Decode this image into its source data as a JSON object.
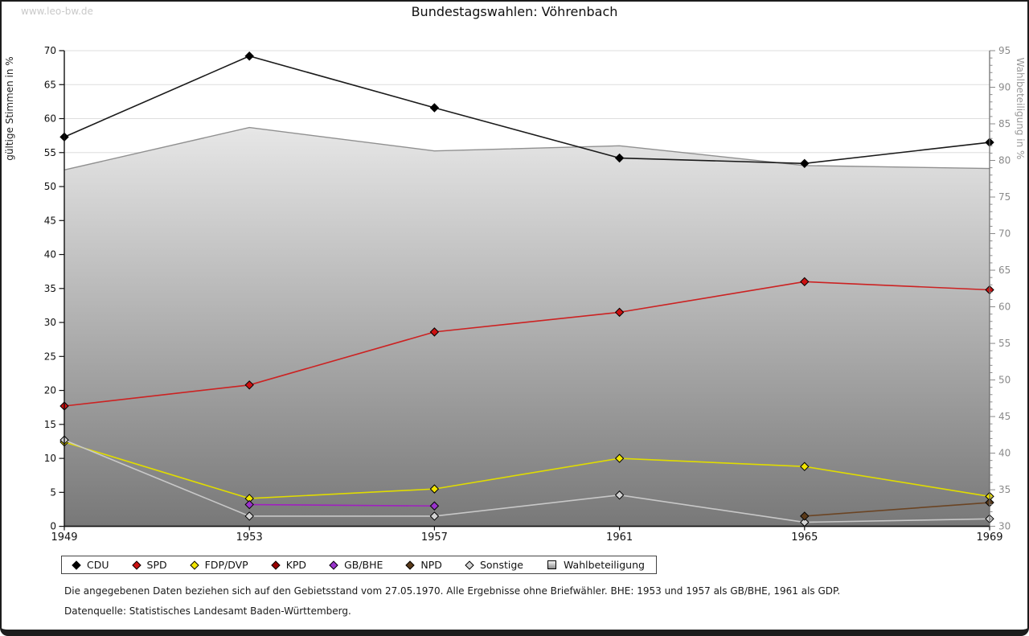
{
  "page": {
    "watermark": "www.leo-bw.de",
    "title": "Bundestagswahlen: Vöhrenbach",
    "footnote1": "Die angegebenen Daten beziehen sich auf den Gebietsstand vom 27.05.1970. Alle Ergebnisse ohne Briefwähler. BHE: 1953 und 1957 als GB/BHE, 1961 als GDP.",
    "footnote2": "Datenquelle: Statistisches Landesamt Baden-Württemberg."
  },
  "chart_data": {
    "type": "line",
    "title": "Bundestagswahlen: Vöhrenbach",
    "x_labels": [
      "1949",
      "1953",
      "1957",
      "1961",
      "1965",
      "1969"
    ],
    "y_left": {
      "label": "gültige Stimmen in %",
      "min": 0,
      "max": 70,
      "step": 5
    },
    "y_right": {
      "label": "Wahlbeteiligung in %",
      "min": 30,
      "max": 95,
      "step": 5
    },
    "grid": "horizontal-left-ticks",
    "legend_position": "bottom",
    "series": [
      {
        "name": "CDU",
        "axis": "left",
        "kind": "line",
        "marker": "diamond",
        "color": "#000000",
        "line_color": "#1a1a1a",
        "draw_order": 6,
        "values": [
          57.3,
          69.2,
          61.6,
          54.2,
          53.4,
          56.5
        ]
      },
      {
        "name": "SPD",
        "axis": "left",
        "kind": "line",
        "marker": "diamond",
        "color": "#cc1111",
        "line_color": "#cc2222",
        "draw_order": 5,
        "values": [
          17.7,
          20.8,
          28.6,
          31.5,
          36.0,
          34.8
        ]
      },
      {
        "name": "FDP/DVP",
        "axis": "left",
        "kind": "line",
        "marker": "diamond",
        "color": "#f2e500",
        "line_color": "#e0dc00",
        "draw_order": 1,
        "values": [
          12.4,
          4.1,
          5.5,
          10.0,
          8.8,
          4.4
        ]
      },
      {
        "name": "KPD",
        "axis": "left",
        "kind": "line",
        "marker": "diamond",
        "color": "#990000",
        "line_color": "#990000",
        "draw_order": 0,
        "values": [
          null,
          null,
          null,
          null,
          null,
          null
        ]
      },
      {
        "name": "GB/BHE",
        "axis": "left",
        "kind": "line",
        "marker": "diamond",
        "color": "#9933cc",
        "line_color": "#a020c0",
        "draw_order": 2,
        "values": [
          null,
          3.2,
          3.0,
          null,
          null,
          null
        ]
      },
      {
        "name": "NPD",
        "axis": "left",
        "kind": "line",
        "marker": "diamond",
        "color": "#5a3a1a",
        "line_color": "#6b4423",
        "draw_order": 4,
        "values": [
          null,
          null,
          null,
          null,
          1.5,
          3.5
        ]
      },
      {
        "name": "Sonstige",
        "axis": "left",
        "kind": "line",
        "marker": "diamond",
        "color": "#d4d4d4",
        "line_color": "#c8c8c8",
        "draw_order": 3,
        "values": [
          12.7,
          1.5,
          1.5,
          4.6,
          0.6,
          1.1
        ]
      },
      {
        "name": "Wahlbeteiligung",
        "axis": "right",
        "kind": "area",
        "marker": "square",
        "color": "#8d8d8d",
        "line_color": "#909090",
        "draw_order": -1,
        "values": [
          78.7,
          84.5,
          81.3,
          82.0,
          79.3,
          78.9
        ]
      }
    ],
    "legend": [
      {
        "label": "CDU",
        "marker": "diamond",
        "color": "#000000"
      },
      {
        "label": "SPD",
        "marker": "diamond",
        "color": "#cc1111"
      },
      {
        "label": "FDP/DVP",
        "marker": "diamond",
        "color": "#f2e500"
      },
      {
        "label": "KPD",
        "marker": "diamond",
        "color": "#990000"
      },
      {
        "label": "GB/BHE",
        "marker": "diamond",
        "color": "#9933cc"
      },
      {
        "label": "NPD",
        "marker": "diamond",
        "color": "#5a3a1a"
      },
      {
        "label": "Sonstige",
        "marker": "diamond",
        "color": "#d4d4d4"
      },
      {
        "label": "Wahlbeteiligung",
        "marker": "square",
        "color": "#8d8d8d"
      }
    ]
  }
}
